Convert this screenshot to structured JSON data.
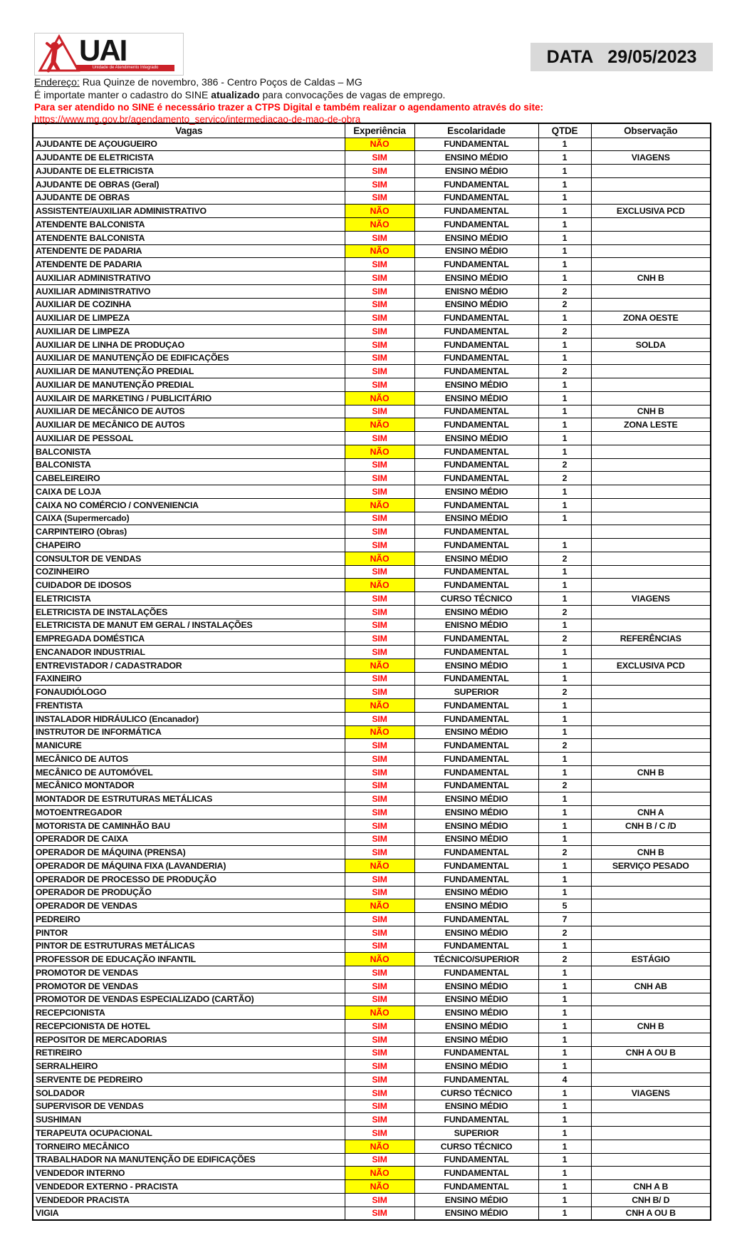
{
  "header": {
    "logo_text": "UAI",
    "logo_subtext": "Unidade de Atendimento Integrado",
    "date_label": "DATA",
    "date_value": "29/05/2023",
    "address_label": "Endereço:",
    "address_text": " Rua Quinze de novembro, 386 - Centro Poços de Caldas – MG",
    "info_prefix": "É importate manter o cadastro do SINE ",
    "info_bold": "atualizado",
    "info_suffix": " para convocações de vagas de emprego.",
    "notice": "Para ser atendido no SINE é necessário trazer a CTPS Digital e também realizar o agendamento através do site:",
    "link": "https://www.mg.gov.br/agendamento_servico/intermediacao-de-mao-de-obra"
  },
  "colors": {
    "highlight": "#ffff00",
    "red": "#ff0000",
    "date_bg": "#d9d9d9",
    "logo_red": "#cc2229"
  },
  "table": {
    "columns": [
      "Vagas",
      "Experiência",
      "Escolaridade",
      "QTDE",
      "Observação"
    ],
    "rows": [
      {
        "vaga": "AJUDANTE DE AÇOUGUEIRO",
        "exp": "NÃO",
        "esc": "FUNDAMENTAL",
        "qtde": "1",
        "obs": ""
      },
      {
        "vaga": "AJUDANTE DE ELETRICISTA",
        "exp": "SIM",
        "esc": "ENSINO MÉDIO",
        "qtde": "1",
        "obs": "VIAGENS"
      },
      {
        "vaga": "AJUDANTE DE ELETRICISTA",
        "exp": "SIM",
        "esc": "ENSINO MÉDIO",
        "qtde": "1",
        "obs": ""
      },
      {
        "vaga": "AJUDANTE DE OBRAS (Geral)",
        "exp": "SIM",
        "esc": "FUNDAMENTAL",
        "qtde": "1",
        "obs": ""
      },
      {
        "vaga": "AJUDANTE DE OBRAS",
        "exp": "SIM",
        "esc": "FUNDAMENTAL",
        "qtde": "1",
        "obs": ""
      },
      {
        "vaga": "ASSISTENTE/AUXILIAR ADMINISTRATIVO",
        "exp": "NÃO",
        "esc": "FUNDAMENTAL",
        "qtde": "1",
        "obs": "EXCLUSIVA PCD"
      },
      {
        "vaga": "ATENDENTE BALCONISTA",
        "exp": "NÃO",
        "esc": "FUNDAMENTAL",
        "qtde": "1",
        "obs": ""
      },
      {
        "vaga": "ATENDENTE BALCONISTA",
        "exp": "SIM",
        "esc": "ENSINO MÉDIO",
        "qtde": "1",
        "obs": ""
      },
      {
        "vaga": "ATENDENTE DE PADARIA",
        "exp": "NÃO",
        "esc": "ENSINO MÉDIO",
        "qtde": "1",
        "obs": ""
      },
      {
        "vaga": "ATENDENTE DE PADARIA",
        "exp": "SIM",
        "esc": "FUNDAMENTAL",
        "qtde": "1",
        "obs": ""
      },
      {
        "vaga": "AUXILIAR ADMINISTRATIVO",
        "exp": "SIM",
        "esc": "ENSINO MÉDIO",
        "qtde": "1",
        "obs": "CNH B"
      },
      {
        "vaga": "AUXILIAR ADMINISTRATIVO",
        "exp": "SIM",
        "esc": "ENISNO MÉDIO",
        "qtde": "2",
        "obs": ""
      },
      {
        "vaga": "AUXILIAR DE COZINHA",
        "exp": "SIM",
        "esc": "ENSINO MÉDIO",
        "qtde": "2",
        "obs": ""
      },
      {
        "vaga": "AUXILIAR DE LIMPEZA",
        "exp": "SIM",
        "esc": "FUNDAMENTAL",
        "qtde": "1",
        "obs": "ZONA OESTE"
      },
      {
        "vaga": "AUXILIAR DE LIMPEZA",
        "exp": "SIM",
        "esc": "FUNDAMENTAL",
        "qtde": "2",
        "obs": ""
      },
      {
        "vaga": "AUXILIAR DE LINHA DE PRODUÇAO",
        "exp": "SIM",
        "esc": "FUNDAMENTAL",
        "qtde": "1",
        "obs": "SOLDA"
      },
      {
        "vaga": "AUXILIAR DE MANUTENÇÃO DE EDIFICAÇÕES",
        "exp": "SIM",
        "esc": "FUNDAMENTAL",
        "qtde": "1",
        "obs": ""
      },
      {
        "vaga": "AUXILIAR DE MANUTENÇÃO PREDIAL",
        "exp": "SIM",
        "esc": "FUNDAMENTAL",
        "qtde": "2",
        "obs": ""
      },
      {
        "vaga": "AUXILIAR DE MANUTENÇÃO PREDIAL",
        "exp": "SIM",
        "esc": "ENSINO MÉDIO",
        "qtde": "1",
        "obs": ""
      },
      {
        "vaga": "AUXILAIR DE MARKETING / PUBLICITÁRIO",
        "exp": "NÃO",
        "esc": "ENSINO MÉDIO",
        "qtde": "1",
        "obs": ""
      },
      {
        "vaga": "AUXILIAR DE MECÂNICO DE AUTOS",
        "exp": "SIM",
        "esc": "FUNDAMENTAL",
        "qtde": "1",
        "obs": "CNH B"
      },
      {
        "vaga": "AUXILIAR DE MECÂNICO DE AUTOS",
        "exp": "NÃO",
        "esc": "FUNDAMENTAL",
        "qtde": "1",
        "obs": "ZONA LESTE"
      },
      {
        "vaga": "AUXILIAR DE PESSOAL",
        "exp": "SIM",
        "esc": "ENSINO MÉDIO",
        "qtde": "1",
        "obs": ""
      },
      {
        "vaga": "BALCONISTA",
        "exp": "NÃO",
        "esc": "FUNDAMENTAL",
        "qtde": "1",
        "obs": ""
      },
      {
        "vaga": "BALCONISTA",
        "exp": "SIM",
        "esc": "FUNDAMENTAL",
        "qtde": "2",
        "obs": ""
      },
      {
        "vaga": "CABELEIREIRO",
        "exp": "SIM",
        "esc": "FUNDAMENTAL",
        "qtde": "2",
        "obs": ""
      },
      {
        "vaga": "CAIXA DE LOJA",
        "exp": "SIM",
        "esc": "ENSINO MÉDIO",
        "qtde": "1",
        "obs": ""
      },
      {
        "vaga": "CAIXA NO COMÉRCIO / CONVENIENCIA",
        "exp": "NÃO",
        "esc": "FUNDAMENTAL",
        "qtde": "1",
        "obs": ""
      },
      {
        "vaga": "CAIXA (Supermercado)",
        "exp": "SIM",
        "esc": "ENSINO MÉDIO",
        "qtde": "1",
        "obs": ""
      },
      {
        "vaga": "CARPINTEIRO (Obras)",
        "exp": "SIM",
        "esc": "FUNDAMENTAL",
        "qtde": "",
        "obs": ""
      },
      {
        "vaga": "CHAPEIRO",
        "exp": "SIM",
        "esc": "FUNDAMENTAL",
        "qtde": "1",
        "obs": ""
      },
      {
        "vaga": "CONSULTOR DE VENDAS",
        "exp": "NÃO",
        "esc": "ENSINO MÉDIO",
        "qtde": "2",
        "obs": ""
      },
      {
        "vaga": "COZINHEIRO",
        "exp": "SIM",
        "esc": "FUNDAMENTAL",
        "qtde": "1",
        "obs": ""
      },
      {
        "vaga": "CUIDADOR DE IDOSOS",
        "exp": "NÃO",
        "esc": "FUNDAMENTAL",
        "qtde": "1",
        "obs": ""
      },
      {
        "vaga": "ELETRICISTA",
        "exp": "SIM",
        "esc": "CURSO TÉCNICO",
        "qtde": "1",
        "obs": "VIAGENS"
      },
      {
        "vaga": "ELETRICISTA DE INSTALAÇÕES",
        "exp": "SIM",
        "esc": "ENSINO MÉDIO",
        "qtde": "2",
        "obs": ""
      },
      {
        "vaga": "ELETRICISTA DE MANUT EM GERAL / INSTALAÇÕES",
        "exp": "SIM",
        "esc": "ENISNO MÉDIO",
        "qtde": "1",
        "obs": ""
      },
      {
        "vaga": "EMPREGADA DOMÉSTICA",
        "exp": "SIM",
        "esc": "FUNDAMENTAL",
        "qtde": "2",
        "obs": "REFERÊNCIAS"
      },
      {
        "vaga": "ENCANADOR INDUSTRIAL",
        "exp": "SIM",
        "esc": "FUNDAMENTAL",
        "qtde": "1",
        "obs": ""
      },
      {
        "vaga": "ENTREVISTADOR / CADASTRADOR",
        "exp": "NÃO",
        "esc": "ENSINO MÉDIO",
        "qtde": "1",
        "obs": "EXCLUSIVA PCD"
      },
      {
        "vaga": "FAXINEIRO",
        "exp": "SIM",
        "esc": "FUNDAMENTAL",
        "qtde": "1",
        "obs": ""
      },
      {
        "vaga": "FONAUDIÓLOGO",
        "exp": "SIM",
        "esc": "SUPERIOR",
        "qtde": "2",
        "obs": ""
      },
      {
        "vaga": "FRENTISTA",
        "exp": "NÃO",
        "esc": "FUNDAMENTAL",
        "qtde": "1",
        "obs": ""
      },
      {
        "vaga": "INSTALADOR HIDRÁULICO (Encanador)",
        "exp": "SIM",
        "esc": "FUNDAMENTAL",
        "qtde": "1",
        "obs": ""
      },
      {
        "vaga": "INSTRUTOR DE INFORMÁTICA",
        "exp": "NÃO",
        "esc": "ENSINO MÉDIO",
        "qtde": "1",
        "obs": ""
      },
      {
        "vaga": "MANICURE",
        "exp": "SIM",
        "esc": "FUNDAMENTAL",
        "qtde": "2",
        "obs": ""
      },
      {
        "vaga": "MECÂNICO DE AUTOS",
        "exp": "SIM",
        "esc": "FUNDAMENTAL",
        "qtde": "1",
        "obs": ""
      },
      {
        "vaga": "MECÂNICO DE AUTOMÓVEL",
        "exp": "SIM",
        "esc": "FUNDAMENTAL",
        "qtde": "1",
        "obs": "CNH B"
      },
      {
        "vaga": "MECÂNICO MONTADOR",
        "exp": "SIM",
        "esc": "FUNDAMENTAL",
        "qtde": "2",
        "obs": ""
      },
      {
        "vaga": "MONTADOR DE ESTRUTURAS METÁLICAS",
        "exp": "SIM",
        "esc": "ENSINO MÉDIO",
        "qtde": "1",
        "obs": ""
      },
      {
        "vaga": "MOTOENTREGADOR",
        "exp": "SIM",
        "esc": "ENSINO MÉDIO",
        "qtde": "1",
        "obs": "CNH A"
      },
      {
        "vaga": "MOTORISTA DE CAMINHÃO BAU",
        "exp": "SIM",
        "esc": "ENSINO MÉDIO",
        "qtde": "1",
        "obs": "CNH B / C /D"
      },
      {
        "vaga": "OPERADOR DE CAIXA",
        "exp": "SIM",
        "esc": "ENSINO MÉDIO",
        "qtde": "1",
        "obs": ""
      },
      {
        "vaga": "OPERADOR DE MÁQUINA (PRENSA)",
        "exp": "SIM",
        "esc": "FUNDAMENTAL",
        "qtde": "2",
        "obs": "CNH B"
      },
      {
        "vaga": "OPERADOR DE MÁQUINA FIXA (LAVANDERIA)",
        "exp": "NÃO",
        "esc": "FUNDAMENTAL",
        "qtde": "1",
        "obs": "SERVIÇO PESADO"
      },
      {
        "vaga": "OPERADOR DE PROCESSO DE PRODUÇÃO",
        "exp": "SIM",
        "esc": "FUNDAMENTAL",
        "qtde": "1",
        "obs": ""
      },
      {
        "vaga": "OPERADOR DE PRODUÇÃO",
        "exp": "SIM",
        "esc": "ENSINO MÉDIO",
        "qtde": "1",
        "obs": ""
      },
      {
        "vaga": "OPERADOR DE VENDAS",
        "exp": "NÃO",
        "esc": "ENSINO MÉDIO",
        "qtde": "5",
        "obs": ""
      },
      {
        "vaga": "PEDREIRO",
        "exp": "SIM",
        "esc": "FUNDAMENTAL",
        "qtde": "7",
        "obs": ""
      },
      {
        "vaga": "PINTOR",
        "exp": "SIM",
        "esc": "ENSINO MÉDIO",
        "qtde": "2",
        "obs": ""
      },
      {
        "vaga": "PINTOR DE ESTRUTURAS METÁLICAS",
        "exp": "SIM",
        "esc": "FUNDAMENTAL",
        "qtde": "1",
        "obs": ""
      },
      {
        "vaga": "PROFESSOR DE EDUCAÇÃO INFANTIL",
        "exp": "NÃO",
        "esc": "TÉCNICO/SUPERIOR",
        "qtde": "2",
        "obs": "ESTÁGIO"
      },
      {
        "vaga": "PROMOTOR DE VENDAS",
        "exp": "SIM",
        "esc": "FUNDAMENTAL",
        "qtde": "1",
        "obs": ""
      },
      {
        "vaga": "PROMOTOR DE VENDAS",
        "exp": "SIM",
        "esc": "ENSINO MÉDIO",
        "qtde": "1",
        "obs": "CNH AB"
      },
      {
        "vaga": "PROMOTOR DE VENDAS ESPECIALIZADO (CARTÃO)",
        "exp": "SIM",
        "esc": "ENSINO MÉDIO",
        "qtde": "1",
        "obs": ""
      },
      {
        "vaga": "RECEPCIONISTA",
        "exp": "NÃO",
        "esc": "ENSINO MÉDIO",
        "qtde": "1",
        "obs": ""
      },
      {
        "vaga": "RECEPCIONISTA DE HOTEL",
        "exp": "SIM",
        "esc": "ENSINO MÉDIO",
        "qtde": "1",
        "obs": "CNH B"
      },
      {
        "vaga": "REPOSITOR DE MERCADORIAS",
        "exp": "SIM",
        "esc": "ENSINO MÉDIO",
        "qtde": "1",
        "obs": ""
      },
      {
        "vaga": "RETIREIRO",
        "exp": "SIM",
        "esc": "FUNDAMENTAL",
        "qtde": "1",
        "obs": "CNH A OU B"
      },
      {
        "vaga": "SERRALHEIRO",
        "exp": "SIM",
        "esc": "ENSINO MÉDIO",
        "qtde": "1",
        "obs": ""
      },
      {
        "vaga": "SERVENTE DE PEDREIRO",
        "exp": "SIM",
        "esc": "FUNDAMENTAL",
        "qtde": "4",
        "obs": ""
      },
      {
        "vaga": "SOLDADOR",
        "exp": "SIM",
        "esc": "CURSO TÉCNICO",
        "qtde": "1",
        "obs": "VIAGENS"
      },
      {
        "vaga": "SUPERVISOR DE VENDAS",
        "exp": "SIM",
        "esc": "ENSINO MÉDIO",
        "qtde": "1",
        "obs": ""
      },
      {
        "vaga": "SUSHIMAN",
        "exp": "SIM",
        "esc": "FUNDAMENTAL",
        "qtde": "1",
        "obs": ""
      },
      {
        "vaga": "TERAPEUTA OCUPACIONAL",
        "exp": "SIM",
        "esc": "SUPERIOR",
        "qtde": "1",
        "obs": ""
      },
      {
        "vaga": "TORNEIRO MECÂNICO",
        "exp": "NÃO",
        "esc": "CURSO TÉCNICO",
        "qtde": "1",
        "obs": ""
      },
      {
        "vaga": "TRABALHADOR NA MANUTENÇÃO DE EDIFICAÇÕES",
        "exp": "SIM",
        "esc": "FUNDAMENTAL",
        "qtde": "1",
        "obs": ""
      },
      {
        "vaga": "VENDEDOR INTERNO",
        "exp": "NÃO",
        "esc": "FUNDAMENTAL",
        "qtde": "1",
        "obs": ""
      },
      {
        "vaga": "VENDEDOR EXTERNO - PRACISTA",
        "exp": "NÃO",
        "esc": "FUNDAMENTAL",
        "qtde": "1",
        "obs": "CNH A B"
      },
      {
        "vaga": "VENDEDOR PRACISTA",
        "exp": "SIM",
        "esc": "ENSINO MÉDIO",
        "qtde": "1",
        "obs": "CNH  B/ D"
      },
      {
        "vaga": "VIGIA",
        "exp": "SIM",
        "esc": "ENSINO MÉDIO",
        "qtde": "1",
        "obs": "CNH A OU B"
      }
    ]
  }
}
